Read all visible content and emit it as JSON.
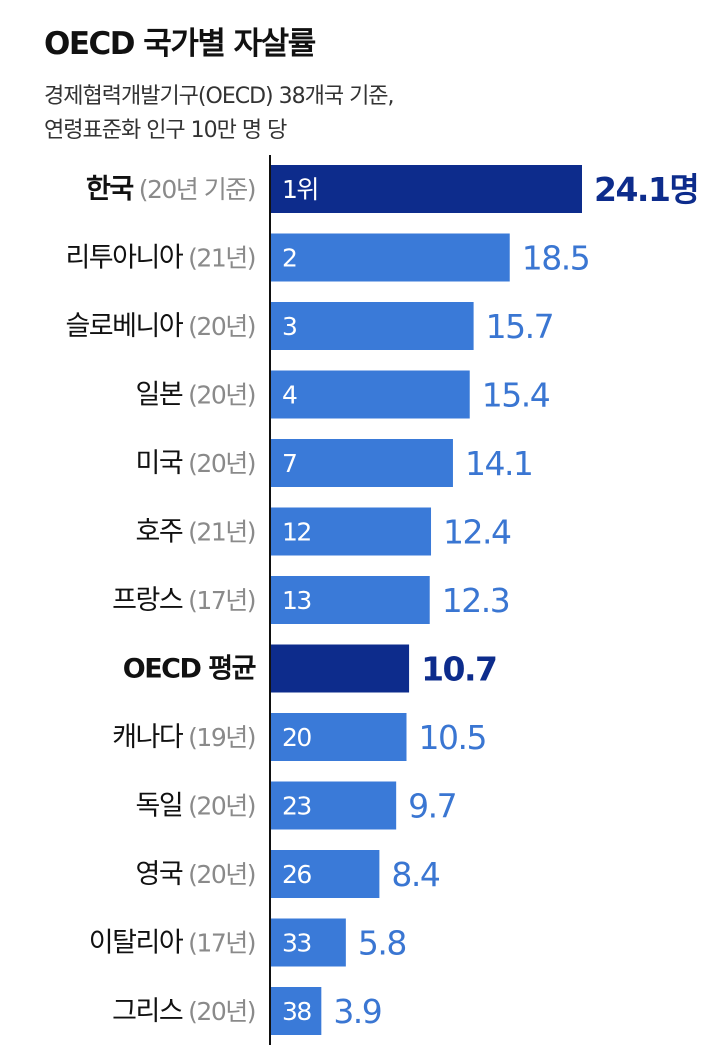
{
  "header": {
    "title": "OECD 국가별 자살률",
    "subtitle_line1": "경제협력개발기구(OECD) 38개국 기준,",
    "subtitle_line2": "연령표준화 인구 10만 명 당"
  },
  "colors": {
    "bar": "#3a7ad8",
    "highlight_bar": "#0d2c8c",
    "value_text": "#3a76d2",
    "highlight_value_text": "#0d2c8c",
    "year_text": "#8a8a8a",
    "axis": "#111111"
  },
  "chart_data": {
    "type": "bar",
    "orientation": "horizontal",
    "title": "OECD 국가별 자살률",
    "subtitle": "경제협력개발기구(OECD) 38개국 기준, 연령표준화 인구 10만 명 당",
    "xlim": [
      0,
      24.1
    ],
    "grid": false,
    "rows": [
      {
        "country": "한국",
        "year": "(20년 기준)",
        "rank": "1위",
        "value": 24.1,
        "value_label": "24.1명",
        "highlight": true
      },
      {
        "country": "리투아니아",
        "year": "(21년)",
        "rank": "2",
        "value": 18.5,
        "value_label": "18.5",
        "highlight": false
      },
      {
        "country": "슬로베니아",
        "year": "(20년)",
        "rank": "3",
        "value": 15.7,
        "value_label": "15.7",
        "highlight": false
      },
      {
        "country": "일본",
        "year": "(20년)",
        "rank": "4",
        "value": 15.4,
        "value_label": "15.4",
        "highlight": false
      },
      {
        "country": "미국",
        "year": "(20년)",
        "rank": "7",
        "value": 14.1,
        "value_label": "14.1",
        "highlight": false
      },
      {
        "country": "호주",
        "year": "(21년)",
        "rank": "12",
        "value": 12.4,
        "value_label": "12.4",
        "highlight": false
      },
      {
        "country": "프랑스",
        "year": "(17년)",
        "rank": "13",
        "value": 12.3,
        "value_label": "12.3",
        "highlight": false
      },
      {
        "country": "OECD 평균",
        "year": "",
        "rank": "",
        "value": 10.7,
        "value_label": "10.7",
        "highlight": true
      },
      {
        "country": "캐나다",
        "year": "(19년)",
        "rank": "20",
        "value": 10.5,
        "value_label": "10.5",
        "highlight": false
      },
      {
        "country": "독일",
        "year": "(20년)",
        "rank": "23",
        "value": 9.7,
        "value_label": "9.7",
        "highlight": false
      },
      {
        "country": "영국",
        "year": "(20년)",
        "rank": "26",
        "value": 8.4,
        "value_label": "8.4",
        "highlight": false
      },
      {
        "country": "이탈리아",
        "year": "(17년)",
        "rank": "33",
        "value": 5.8,
        "value_label": "5.8",
        "highlight": false
      },
      {
        "country": "그리스",
        "year": "(20년)",
        "rank": "38",
        "value": 3.9,
        "value_label": "3.9",
        "highlight": false
      }
    ]
  }
}
